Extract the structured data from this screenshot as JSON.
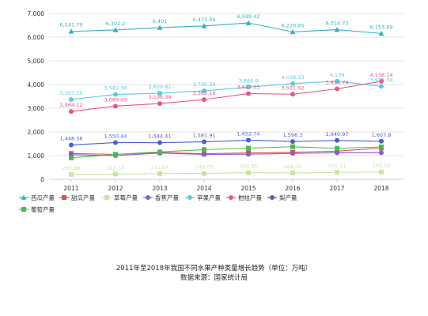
{
  "chart_data": {
    "type": "line",
    "categories": [
      "2011",
      "2012",
      "2013",
      "2014",
      "2015",
      "2016",
      "2017",
      "2018"
    ],
    "ylim": [
      0,
      7000
    ],
    "yticks": [
      "0",
      "1,000",
      "2,000",
      "3,000",
      "4,000",
      "5,000",
      "6,000",
      "7,000"
    ],
    "grid": true,
    "legend_position": "bottom",
    "series": [
      {
        "name": "西瓜产量",
        "color": "#2fb3c9",
        "marker": "triangle",
        "values": [
          6241.79,
          6302.2,
          6401,
          6473.04,
          6599.42,
          6220.65,
          6314.72,
          6153.69
        ],
        "labels": [
          "6,241.79",
          "6,302.2",
          "6,401",
          "6,473.04",
          "6,599.42",
          "6,220.65",
          "6,314.72",
          "6,153.69"
        ]
      },
      {
        "name": "甜瓜产量",
        "color": "#d9534f",
        "marker": "square",
        "values": [
          1088.99,
          1050,
          1130,
          1080,
          1115,
          1140,
          1190,
          1317
        ]
      },
      {
        "name": "草莓产量",
        "color": "#c9e6a0",
        "marker": "square",
        "values": [
          205.88,
          222.13,
          241.64,
          248.05,
          280.35,
          268.02,
          295.11,
          306.03
        ],
        "labels": [
          "205.88",
          "222.13",
          "241.64",
          "248.05",
          "280.35",
          "268.02",
          "295.11",
          "306.03"
        ]
      },
      {
        "name": "香蕉产量",
        "color": "#8a5ad6",
        "marker": "circle",
        "values": [
          1040,
          1000,
          1110,
          1050,
          1060,
          1095,
          1120,
          1122.17
        ]
      },
      {
        "name": "苹果产量",
        "color": "#5bc8e6",
        "marker": "circle",
        "values": [
          3367.25,
          3581.36,
          3629.81,
          3735.39,
          3889.9,
          4039.33,
          4139,
          3923.34
        ],
        "labels": [
          "3,367.25",
          "3,581.36",
          "3,629.81",
          "3,735.39",
          "3,889.9",
          "4,039.33",
          "4,139",
          "3,923.34"
        ]
      },
      {
        "name": "柑桔产量",
        "color": "#e8558a",
        "marker": "circle",
        "values": [
          2864.12,
          3089.43,
          3196.39,
          3362.18,
          3617.53,
          3591.52,
          3816.78,
          4138.14
        ],
        "labels": [
          "2,864.12",
          "3,089.43",
          "3,196.39",
          "3,362.18",
          "3,617.53",
          "3,591.52",
          "3,816.78",
          "4,138.14"
        ]
      },
      {
        "name": "梨产量",
        "color": "#4a5fc9",
        "marker": "circle",
        "values": [
          1448.56,
          1550.44,
          1544.41,
          1581.91,
          1652.74,
          1596.3,
          1640.97,
          1607.8
        ],
        "labels": [
          "1,448.56",
          "1,550.44",
          "1,544.41",
          "1,581.91",
          "1,652.74",
          "1,596.3",
          "1,640.97",
          "1,607.8"
        ]
      },
      {
        "name": "葡萄产量",
        "color": "#4cbb4c",
        "marker": "square",
        "values": [
          906,
          1054.4,
          1155,
          1254.5,
          1316.41,
          1374.8,
          1308.05,
          1366.68
        ]
      }
    ]
  },
  "caption": {
    "title": "2011年至2018年我国不同水果产种类量增长趋势（单位：万吨）",
    "source": "数据来源：国家统计局"
  }
}
